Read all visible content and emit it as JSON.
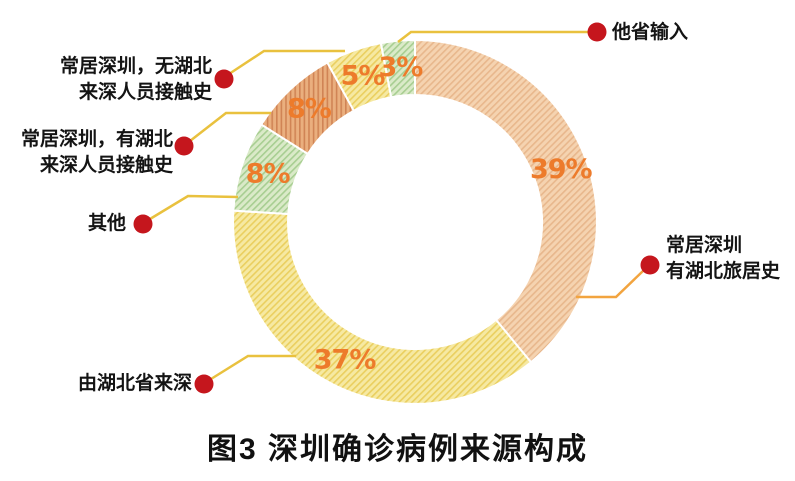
{
  "figure": {
    "title": "图3 深圳确诊病例来源构成"
  },
  "chart_data": {
    "type": "pie",
    "subtype": "donut",
    "title": "图3 深圳确诊病例来源构成",
    "unit": "%",
    "start_angle_deg": 0,
    "direction": "clockwise",
    "inner_radius_ratio": 0.7,
    "legend_position": "callouts",
    "segments": [
      {
        "label": "常居深圳 有湖北旅居史",
        "value": 39,
        "scheme": "salmon"
      },
      {
        "label": "由湖北省来深",
        "value": 37,
        "scheme": "yellow"
      },
      {
        "label": "其他",
        "value": 8,
        "scheme": "green"
      },
      {
        "label": "常居深圳，有湖北来深人员接触史",
        "value": 8,
        "scheme": "orange"
      },
      {
        "label": "常居深圳，无湖北来深人员接触史",
        "value": 5,
        "scheme": "yellow"
      },
      {
        "label": "他省输入",
        "value": 3,
        "scheme": "green"
      }
    ],
    "schemes": {
      "salmon": {
        "base": "#F5D3B0",
        "hatch": "#E8B78C",
        "orientation": "diagonal"
      },
      "yellow": {
        "base": "#F6E9A2",
        "hatch": "#EACF5F",
        "orientation": "diagonal"
      },
      "green": {
        "base": "#DAEAC8",
        "hatch": "#A7CE91",
        "orientation": "diagonal"
      },
      "orange": {
        "base": "#EAAF7E",
        "hatch": "#D08455",
        "orientation": "vertical"
      }
    },
    "value_label_color": "#ED7B2B"
  },
  "callouts": [
    {
      "id": "other-province-import",
      "lines": [
        "他省输入"
      ]
    },
    {
      "id": "resident-hubei-travel-history",
      "lines": [
        "常居深圳",
        "有湖北旅居史"
      ]
    },
    {
      "id": "from-hubei-to-shenzhen",
      "lines": [
        "由湖北省来深"
      ]
    },
    {
      "id": "other",
      "lines": [
        "其他"
      ]
    },
    {
      "id": "resident-with-hubei-contact",
      "lines": [
        "常居深圳，有湖北",
        "来深人员接触史"
      ]
    },
    {
      "id": "resident-without-hubei-contact",
      "lines": [
        "常居深圳，无湖北",
        "来深人员接触史"
      ]
    }
  ],
  "style": {
    "dot_color": "#C5161D",
    "connector_color": "#E9C13E",
    "connector_color_right": "#F2A43F",
    "text_color": "#141414",
    "background": "#FFFFFF"
  }
}
